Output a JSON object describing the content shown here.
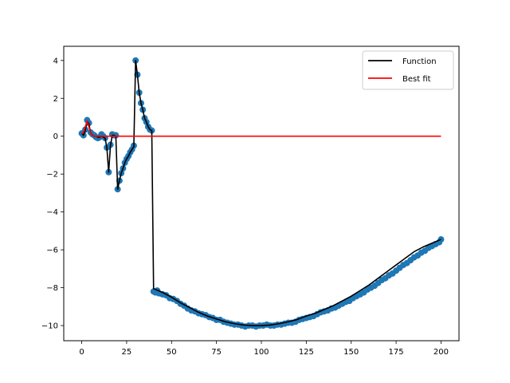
{
  "chart_data": {
    "type": "line",
    "title": "",
    "xlabel": "",
    "ylabel": "",
    "xlim": [
      -10,
      210
    ],
    "ylim": [
      -10.8,
      4.75
    ],
    "xticks": [
      0,
      25,
      50,
      75,
      100,
      125,
      150,
      175,
      200
    ],
    "yticks": [
      -10,
      -8,
      -6,
      -4,
      -2,
      0,
      2,
      4
    ],
    "grid": false,
    "legend_position": "top-right",
    "colors": {
      "points": "#1f77b4",
      "function": "#000000",
      "best_fit": "#ff0000"
    },
    "series": [
      {
        "name": "Function",
        "kind": "line",
        "x": [
          0,
          1,
          2,
          3,
          4,
          5,
          6,
          7,
          8,
          9,
          10,
          11,
          12,
          13,
          14,
          15,
          16,
          17,
          18,
          19,
          20,
          21,
          22,
          23,
          24,
          25,
          26,
          27,
          28,
          29,
          30,
          31,
          32,
          33,
          34,
          35,
          36,
          37,
          38,
          39,
          40,
          45,
          50,
          55,
          60,
          65,
          70,
          75,
          80,
          85,
          90,
          95,
          100,
          105,
          110,
          115,
          120,
          125,
          130,
          135,
          140,
          145,
          150,
          155,
          160,
          165,
          170,
          175,
          180,
          185,
          190,
          195,
          200
        ],
        "y": [
          0.15,
          0.05,
          0.3,
          0.8,
          0.65,
          0.15,
          0.05,
          0.0,
          0.0,
          -0.05,
          -0.05,
          0.0,
          -0.05,
          -0.1,
          -0.6,
          -1.9,
          -0.5,
          0.05,
          0.05,
          0.0,
          -2.8,
          -2.35,
          -1.95,
          -1.7,
          -1.4,
          -1.2,
          -1.05,
          -0.85,
          -0.7,
          -0.55,
          4.0,
          3.25,
          2.3,
          1.75,
          1.4,
          0.95,
          0.75,
          0.5,
          0.35,
          0.3,
          -8.05,
          -8.25,
          -8.5,
          -8.8,
          -9.05,
          -9.3,
          -9.5,
          -9.65,
          -9.8,
          -9.9,
          -9.97,
          -10.0,
          -10.0,
          -9.97,
          -9.9,
          -9.8,
          -9.68,
          -9.5,
          -9.35,
          -9.15,
          -8.95,
          -8.7,
          -8.45,
          -8.15,
          -7.85,
          -7.5,
          -7.15,
          -6.8,
          -6.45,
          -6.1,
          -5.85,
          -5.65,
          -5.45
        ]
      },
      {
        "name": "Best fit",
        "kind": "line",
        "x": [
          0,
          1,
          2,
          3,
          4,
          5,
          6,
          8,
          10,
          15,
          20,
          30,
          40,
          50,
          100,
          150,
          200
        ],
        "y": [
          0.12,
          0.2,
          0.5,
          0.8,
          0.5,
          0.15,
          0.03,
          0.0,
          0.0,
          0.0,
          0.0,
          0.0,
          0.0,
          0.0,
          0.0,
          0.0,
          0.0
        ]
      }
    ],
    "scatter_x": [
      0,
      1,
      2,
      3,
      4,
      5,
      6,
      7,
      8,
      9,
      10,
      11,
      12,
      13,
      14,
      15,
      16,
      17,
      18,
      19,
      20,
      21,
      22,
      23,
      24,
      25,
      26,
      27,
      28,
      29,
      30,
      31,
      32,
      33,
      34,
      35,
      36,
      37,
      38,
      39,
      40,
      41,
      42,
      43,
      45,
      47,
      49,
      51,
      53,
      55,
      57,
      59,
      61,
      63,
      65,
      67,
      69,
      71,
      73,
      75,
      77,
      79,
      81,
      83,
      85,
      87,
      89,
      91,
      93,
      95,
      97,
      99,
      101,
      103,
      105,
      107,
      109,
      111,
      113,
      115,
      117,
      119,
      121,
      123,
      125,
      127,
      129,
      131,
      133,
      135,
      137,
      139,
      141,
      143,
      145,
      147,
      149,
      151,
      153,
      155,
      157,
      159,
      161,
      163,
      165,
      167,
      169,
      171,
      173,
      175,
      177,
      179,
      181,
      183,
      185,
      187,
      189,
      191,
      193,
      195,
      197,
      199,
      200
    ],
    "scatter_y": [
      0.15,
      0.05,
      0.35,
      0.85,
      0.7,
      0.2,
      0.1,
      0.05,
      -0.05,
      -0.1,
      -0.05,
      0.1,
      0.0,
      -0.1,
      -0.6,
      -1.9,
      -0.45,
      0.1,
      0.05,
      0.05,
      -2.8,
      -2.35,
      -1.95,
      -1.7,
      -1.4,
      -1.2,
      -1.05,
      -0.85,
      -0.7,
      -0.5,
      4.0,
      3.25,
      2.3,
      1.75,
      1.4,
      0.95,
      0.75,
      0.5,
      0.35,
      0.3,
      -8.2,
      -8.25,
      -8.15,
      -8.3,
      -8.35,
      -8.4,
      -8.55,
      -8.6,
      -8.7,
      -8.85,
      -8.95,
      -9.1,
      -9.2,
      -9.25,
      -9.35,
      -9.4,
      -9.45,
      -9.55,
      -9.6,
      -9.7,
      -9.7,
      -9.8,
      -9.85,
      -9.9,
      -9.95,
      -9.95,
      -10.0,
      -10.05,
      -10.0,
      -10.0,
      -10.05,
      -10.0,
      -10.0,
      -9.95,
      -10.0,
      -10.0,
      -9.95,
      -9.95,
      -9.9,
      -9.85,
      -9.85,
      -9.8,
      -9.7,
      -9.65,
      -9.6,
      -9.55,
      -9.5,
      -9.4,
      -9.3,
      -9.25,
      -9.2,
      -9.1,
      -9.05,
      -8.95,
      -8.85,
      -8.75,
      -8.7,
      -8.55,
      -8.45,
      -8.35,
      -8.25,
      -8.1,
      -8.0,
      -7.9,
      -7.75,
      -7.6,
      -7.5,
      -7.35,
      -7.25,
      -7.1,
      -6.95,
      -6.8,
      -6.7,
      -6.55,
      -6.4,
      -6.3,
      -6.15,
      -6.05,
      -5.9,
      -5.8,
      -5.7,
      -5.6,
      -5.45
    ]
  }
}
